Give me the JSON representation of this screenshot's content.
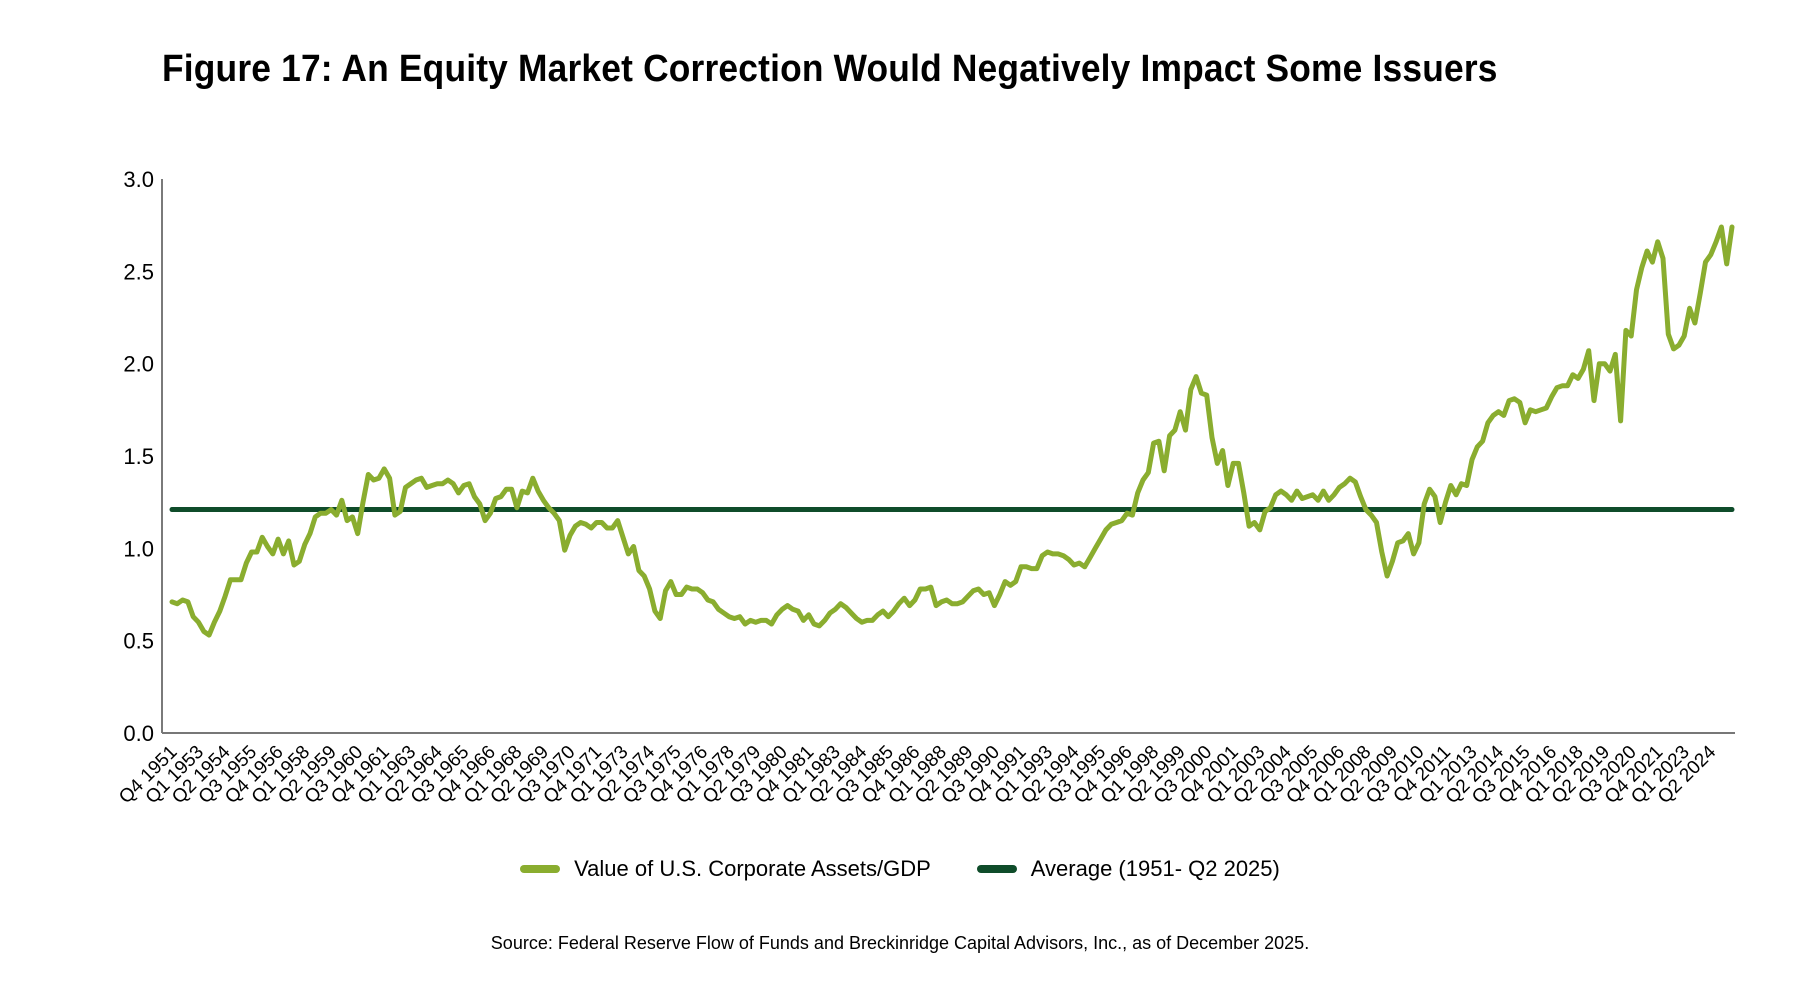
{
  "chart_data": {
    "type": "line",
    "title": "Figure 17: An Equity Market Correction Would Negatively Impact Some Issuers",
    "xlabel": "",
    "ylabel": "",
    "ylim": [
      0.0,
      3.0
    ],
    "yticks": [
      "0.0",
      "0.5",
      "1.0",
      "1.5",
      "2.0",
      "2.5",
      "3.0"
    ],
    "ytick_values": [
      0.0,
      0.5,
      1.0,
      1.5,
      2.0,
      2.5,
      3.0
    ],
    "x_start": "Q4 1951",
    "x_end": "Q2 2025",
    "x_frequency": "quarterly",
    "xtick_labels": [
      "Q4 1951",
      "Q1 1953",
      "Q2 1954",
      "Q3 1955",
      "Q4 1956",
      "Q1 1958",
      "Q2 1959",
      "Q3 1960",
      "Q4 1961",
      "Q1 1963",
      "Q2 1964",
      "Q3 1965",
      "Q4 1966",
      "Q1 1968",
      "Q2 1969",
      "Q3 1970",
      "Q4 1971",
      "Q1 1973",
      "Q2 1974",
      "Q3 1975",
      "Q4 1976",
      "Q1 1978",
      "Q2 1979",
      "Q3 1980",
      "Q4 1981",
      "Q1 1983",
      "Q2 1984",
      "Q3 1985",
      "Q4 1986",
      "Q1 1988",
      "Q2 1989",
      "Q3 1990",
      "Q4 1991",
      "Q1 1993",
      "Q2 1994",
      "Q3 1995",
      "Q4 1996",
      "Q1 1998",
      "Q2 1999",
      "Q3 2000",
      "Q4 2001",
      "Q1 2003",
      "Q2 2004",
      "Q3 2005",
      "Q4 2006",
      "Q1 2008",
      "Q2 2009",
      "Q3 2010",
      "Q4 2011",
      "Q1 2013",
      "Q2 2014",
      "Q3 2015",
      "Q4 2016",
      "Q1 2018",
      "Q2 2019",
      "Q3 2020",
      "Q4 2021",
      "Q1 2023",
      "Q2 2024"
    ],
    "grid": false,
    "legend_position": "bottom-center",
    "series": [
      {
        "name": "Value of U.S. Corporate Assets/GDP",
        "color": "#8aad2f",
        "points_quarter_index_value": [
          [
            0,
            0.71
          ],
          [
            1,
            0.7
          ],
          [
            2,
            0.72
          ],
          [
            3,
            0.71
          ],
          [
            4,
            0.63
          ],
          [
            5,
            0.6
          ],
          [
            6,
            0.55
          ],
          [
            7,
            0.53
          ],
          [
            8,
            0.6
          ],
          [
            9,
            0.66
          ],
          [
            10,
            0.74
          ],
          [
            11,
            0.83
          ],
          [
            12,
            0.83
          ],
          [
            13,
            0.83
          ],
          [
            14,
            0.92
          ],
          [
            15,
            0.98
          ],
          [
            16,
            0.98
          ],
          [
            17,
            1.06
          ],
          [
            18,
            1.01
          ],
          [
            19,
            0.97
          ],
          [
            20,
            1.05
          ],
          [
            21,
            0.97
          ],
          [
            22,
            1.04
          ],
          [
            23,
            0.91
          ],
          [
            24,
            0.93
          ],
          [
            25,
            1.02
          ],
          [
            26,
            1.08
          ],
          [
            27,
            1.17
          ],
          [
            28,
            1.19
          ],
          [
            29,
            1.19
          ],
          [
            30,
            1.21
          ],
          [
            31,
            1.18
          ],
          [
            32,
            1.26
          ],
          [
            33,
            1.15
          ],
          [
            34,
            1.17
          ],
          [
            35,
            1.08
          ],
          [
            36,
            1.25
          ],
          [
            37,
            1.4
          ],
          [
            38,
            1.37
          ],
          [
            39,
            1.38
          ],
          [
            40,
            1.43
          ],
          [
            41,
            1.38
          ],
          [
            42,
            1.18
          ],
          [
            43,
            1.2
          ],
          [
            44,
            1.33
          ],
          [
            45,
            1.35
          ],
          [
            46,
            1.37
          ],
          [
            47,
            1.38
          ],
          [
            48,
            1.33
          ],
          [
            49,
            1.34
          ],
          [
            50,
            1.35
          ],
          [
            51,
            1.35
          ],
          [
            52,
            1.37
          ],
          [
            53,
            1.35
          ],
          [
            54,
            1.3
          ],
          [
            55,
            1.34
          ],
          [
            56,
            1.35
          ],
          [
            57,
            1.28
          ],
          [
            58,
            1.24
          ],
          [
            59,
            1.15
          ],
          [
            60,
            1.19
          ],
          [
            61,
            1.27
          ],
          [
            62,
            1.28
          ],
          [
            63,
            1.32
          ],
          [
            64,
            1.32
          ],
          [
            65,
            1.22
          ],
          [
            66,
            1.31
          ],
          [
            67,
            1.3
          ],
          [
            68,
            1.38
          ],
          [
            69,
            1.31
          ],
          [
            70,
            1.26
          ],
          [
            71,
            1.22
          ],
          [
            72,
            1.19
          ],
          [
            73,
            1.15
          ],
          [
            74,
            0.99
          ],
          [
            75,
            1.07
          ],
          [
            76,
            1.12
          ],
          [
            77,
            1.14
          ],
          [
            78,
            1.13
          ],
          [
            79,
            1.11
          ],
          [
            80,
            1.14
          ],
          [
            81,
            1.14
          ],
          [
            82,
            1.11
          ],
          [
            83,
            1.11
          ],
          [
            84,
            1.15
          ],
          [
            85,
            1.06
          ],
          [
            86,
            0.97
          ],
          [
            87,
            1.01
          ],
          [
            88,
            0.88
          ],
          [
            89,
            0.85
          ],
          [
            90,
            0.78
          ],
          [
            91,
            0.66
          ],
          [
            92,
            0.62
          ],
          [
            93,
            0.77
          ],
          [
            94,
            0.82
          ],
          [
            95,
            0.75
          ],
          [
            96,
            0.75
          ],
          [
            97,
            0.79
          ],
          [
            98,
            0.78
          ],
          [
            99,
            0.78
          ],
          [
            100,
            0.76
          ],
          [
            101,
            0.72
          ],
          [
            102,
            0.71
          ],
          [
            103,
            0.67
          ],
          [
            104,
            0.65
          ],
          [
            105,
            0.63
          ],
          [
            106,
            0.62
          ],
          [
            107,
            0.63
          ],
          [
            108,
            0.59
          ],
          [
            109,
            0.61
          ],
          [
            110,
            0.6
          ],
          [
            111,
            0.61
          ],
          [
            112,
            0.61
          ],
          [
            113,
            0.59
          ],
          [
            114,
            0.64
          ],
          [
            115,
            0.67
          ],
          [
            116,
            0.69
          ],
          [
            117,
            0.67
          ],
          [
            118,
            0.66
          ],
          [
            119,
            0.61
          ],
          [
            120,
            0.64
          ],
          [
            121,
            0.59
          ],
          [
            122,
            0.58
          ],
          [
            123,
            0.61
          ],
          [
            124,
            0.65
          ],
          [
            125,
            0.67
          ],
          [
            126,
            0.7
          ],
          [
            127,
            0.68
          ],
          [
            128,
            0.65
          ],
          [
            129,
            0.62
          ],
          [
            130,
            0.6
          ],
          [
            131,
            0.61
          ],
          [
            132,
            0.61
          ],
          [
            133,
            0.64
          ],
          [
            134,
            0.66
          ],
          [
            135,
            0.63
          ],
          [
            136,
            0.66
          ],
          [
            137,
            0.7
          ],
          [
            138,
            0.73
          ],
          [
            139,
            0.69
          ],
          [
            140,
            0.72
          ],
          [
            141,
            0.78
          ],
          [
            142,
            0.78
          ],
          [
            143,
            0.79
          ],
          [
            144,
            0.69
          ],
          [
            145,
            0.71
          ],
          [
            146,
            0.72
          ],
          [
            147,
            0.7
          ],
          [
            148,
            0.7
          ],
          [
            149,
            0.71
          ],
          [
            150,
            0.74
          ],
          [
            151,
            0.77
          ],
          [
            152,
            0.78
          ],
          [
            153,
            0.75
          ],
          [
            154,
            0.76
          ],
          [
            155,
            0.69
          ],
          [
            156,
            0.75
          ],
          [
            157,
            0.82
          ],
          [
            158,
            0.8
          ],
          [
            159,
            0.82
          ],
          [
            160,
            0.9
          ],
          [
            161,
            0.9
          ],
          [
            162,
            0.89
          ],
          [
            163,
            0.89
          ],
          [
            164,
            0.96
          ],
          [
            165,
            0.98
          ],
          [
            166,
            0.97
          ],
          [
            167,
            0.97
          ],
          [
            168,
            0.96
          ],
          [
            169,
            0.94
          ],
          [
            170,
            0.91
          ],
          [
            171,
            0.92
          ],
          [
            172,
            0.9
          ],
          [
            173,
            0.95
          ],
          [
            174,
            1.0
          ],
          [
            175,
            1.05
          ],
          [
            176,
            1.1
          ],
          [
            177,
            1.13
          ],
          [
            178,
            1.14
          ],
          [
            179,
            1.15
          ],
          [
            180,
            1.19
          ],
          [
            181,
            1.18
          ],
          [
            182,
            1.3
          ],
          [
            183,
            1.37
          ],
          [
            184,
            1.41
          ],
          [
            185,
            1.57
          ],
          [
            186,
            1.58
          ],
          [
            187,
            1.42
          ],
          [
            188,
            1.61
          ],
          [
            189,
            1.64
          ],
          [
            190,
            1.74
          ],
          [
            191,
            1.64
          ],
          [
            192,
            1.86
          ],
          [
            193,
            1.93
          ],
          [
            194,
            1.84
          ],
          [
            195,
            1.83
          ],
          [
            196,
            1.6
          ],
          [
            197,
            1.46
          ],
          [
            198,
            1.53
          ],
          [
            199,
            1.34
          ],
          [
            200,
            1.46
          ],
          [
            201,
            1.46
          ],
          [
            202,
            1.3
          ],
          [
            203,
            1.12
          ],
          [
            204,
            1.14
          ],
          [
            205,
            1.1
          ],
          [
            206,
            1.2
          ],
          [
            207,
            1.22
          ],
          [
            208,
            1.29
          ],
          [
            209,
            1.31
          ],
          [
            210,
            1.29
          ],
          [
            211,
            1.26
          ],
          [
            212,
            1.31
          ],
          [
            213,
            1.27
          ],
          [
            214,
            1.28
          ],
          [
            215,
            1.29
          ],
          [
            216,
            1.26
          ],
          [
            217,
            1.31
          ],
          [
            218,
            1.26
          ],
          [
            219,
            1.29
          ],
          [
            220,
            1.33
          ],
          [
            221,
            1.35
          ],
          [
            222,
            1.38
          ],
          [
            223,
            1.36
          ],
          [
            224,
            1.28
          ],
          [
            225,
            1.21
          ],
          [
            226,
            1.18
          ],
          [
            227,
            1.14
          ],
          [
            228,
            0.98
          ],
          [
            229,
            0.85
          ],
          [
            230,
            0.93
          ],
          [
            231,
            1.03
          ],
          [
            232,
            1.04
          ],
          [
            233,
            1.08
          ],
          [
            234,
            0.97
          ],
          [
            235,
            1.03
          ],
          [
            236,
            1.24
          ],
          [
            237,
            1.32
          ],
          [
            238,
            1.28
          ],
          [
            239,
            1.14
          ],
          [
            240,
            1.25
          ],
          [
            241,
            1.34
          ],
          [
            242,
            1.29
          ],
          [
            243,
            1.35
          ],
          [
            244,
            1.34
          ],
          [
            245,
            1.48
          ],
          [
            246,
            1.55
          ],
          [
            247,
            1.58
          ],
          [
            248,
            1.68
          ],
          [
            249,
            1.72
          ],
          [
            250,
            1.74
          ],
          [
            251,
            1.72
          ],
          [
            252,
            1.8
          ],
          [
            253,
            1.81
          ],
          [
            254,
            1.79
          ],
          [
            255,
            1.68
          ],
          [
            256,
            1.75
          ],
          [
            257,
            1.74
          ],
          [
            258,
            1.75
          ],
          [
            259,
            1.76
          ],
          [
            260,
            1.82
          ],
          [
            261,
            1.87
          ],
          [
            262,
            1.88
          ],
          [
            263,
            1.88
          ],
          [
            264,
            1.94
          ],
          [
            265,
            1.92
          ],
          [
            266,
            1.97
          ],
          [
            267,
            2.07
          ],
          [
            268,
            1.8
          ],
          [
            269,
            2.0
          ],
          [
            270,
            2.0
          ],
          [
            271,
            1.96
          ],
          [
            272,
            2.05
          ],
          [
            273,
            1.69
          ],
          [
            274,
            2.18
          ],
          [
            275,
            2.15
          ],
          [
            276,
            2.4
          ],
          [
            277,
            2.52
          ],
          [
            278,
            2.61
          ],
          [
            279,
            2.55
          ],
          [
            280,
            2.66
          ],
          [
            281,
            2.57
          ],
          [
            282,
            2.16
          ],
          [
            283,
            2.08
          ],
          [
            284,
            2.1
          ],
          [
            285,
            2.15
          ],
          [
            286,
            2.3
          ],
          [
            287,
            2.22
          ],
          [
            288,
            2.38
          ],
          [
            289,
            2.55
          ],
          [
            290,
            2.59
          ],
          [
            291,
            2.66
          ],
          [
            292,
            2.74
          ],
          [
            293,
            2.54
          ],
          [
            294,
            2.74
          ]
        ]
      },
      {
        "name": "Average (1951- Q2 2025)",
        "color": "#0f4c2a",
        "value": 1.21
      }
    ]
  },
  "legend": {
    "items": [
      {
        "label": "Value of U.S. Corporate Assets/GDP",
        "color": "#8aad2f"
      },
      {
        "label": "Average (1951- Q2 2025)",
        "color": "#0f4c2a"
      }
    ]
  },
  "source": "Source: Federal Reserve Flow of Funds and Breckinridge Capital Advisors, Inc., as of December 2025."
}
